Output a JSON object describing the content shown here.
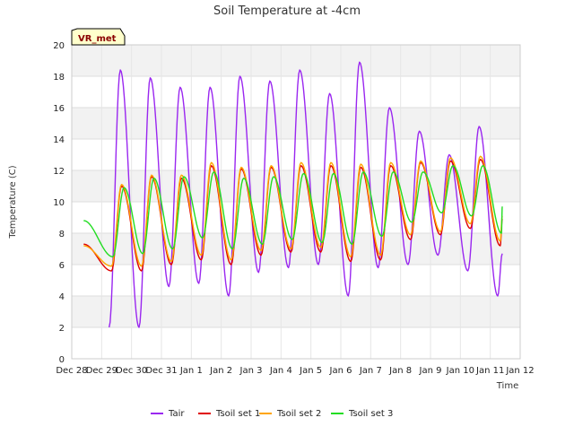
{
  "chart_data": {
    "type": "line",
    "title": "Soil Temperature at -4cm",
    "xlabel": "Time",
    "ylabel": "Temperature (C)",
    "site_badge": "VR_met",
    "ylim": [
      0,
      20
    ],
    "xlim": [
      "Dec 28",
      "Jan 12"
    ],
    "yticks": [
      0,
      2,
      4,
      6,
      8,
      10,
      12,
      14,
      16,
      18,
      20
    ],
    "xticks": [
      "Dec 28",
      "Dec 29",
      "Dec 30",
      "Dec 31",
      "Jan 1",
      "Jan 2",
      "Jan 3",
      "Jan 4",
      "Jan 5",
      "Jan 6",
      "Jan 7",
      "Jan 8",
      "Jan 9",
      "Jan 10",
      "Jan 11",
      "Jan 12"
    ],
    "grid": true,
    "legend_position": "bottom",
    "series": [
      {
        "name": "Tair",
        "color": "#9a27f0",
        "daily_min": [
          2.0,
          2.0,
          4.6,
          4.8,
          4.0,
          5.5,
          5.8,
          6.0,
          4.0,
          5.8,
          6.0,
          6.6,
          5.6,
          4.0
        ],
        "daily_max": [
          18.4,
          17.9,
          17.3,
          17.3,
          18.0,
          17.7,
          18.4,
          16.9,
          18.9,
          16.0,
          14.5,
          13.0,
          14.8,
          15.8
        ],
        "min_hour": 6,
        "max_hour": 15,
        "start_day": 0.4,
        "end_day": 14.4,
        "end_value": 6.7
      },
      {
        "name": "Tsoil set 1",
        "color": "#e00000",
        "daily_min": [
          5.6,
          5.6,
          6.0,
          6.3,
          6.0,
          6.6,
          6.8,
          6.8,
          6.2,
          6.3,
          7.6,
          7.9,
          8.3,
          7.2
        ],
        "daily_max": [
          11.0,
          11.6,
          11.5,
          12.3,
          12.1,
          12.2,
          12.3,
          12.3,
          12.2,
          12.3,
          12.5,
          12.6,
          12.7,
          12.6
        ],
        "min_hour": 8,
        "max_hour": 16,
        "start_day": 0.4,
        "end_day": 14.4,
        "start_value": 7.3,
        "end_value": 8.9
      },
      {
        "name": "Tsoil set 2",
        "color": "#ffa500",
        "daily_min": [
          5.9,
          5.9,
          6.2,
          6.6,
          6.3,
          6.9,
          7.0,
          7.1,
          6.5,
          6.6,
          7.9,
          8.1,
          8.6,
          7.5
        ],
        "daily_max": [
          11.1,
          11.7,
          11.7,
          12.5,
          12.2,
          12.3,
          12.5,
          12.5,
          12.4,
          12.5,
          12.6,
          12.8,
          12.9,
          12.8
        ],
        "min_hour": 8,
        "max_hour": 16,
        "start_day": 0.4,
        "end_day": 14.4,
        "start_value": 7.2,
        "end_value": 9.1
      },
      {
        "name": "Tsoil set 3",
        "color": "#22dd22",
        "daily_min": [
          6.5,
          6.7,
          7.0,
          7.7,
          7.0,
          7.3,
          7.6,
          7.4,
          7.3,
          7.8,
          8.7,
          9.3,
          9.1,
          8.0
        ],
        "daily_max": [
          10.9,
          11.5,
          11.6,
          11.9,
          11.5,
          11.6,
          11.8,
          11.8,
          11.9,
          11.9,
          11.9,
          12.3,
          12.3,
          12.3
        ],
        "min_hour": 9,
        "max_hour": 18,
        "start_day": 0.4,
        "end_day": 14.4,
        "start_value": 8.8,
        "end_value": 9.7
      }
    ]
  }
}
